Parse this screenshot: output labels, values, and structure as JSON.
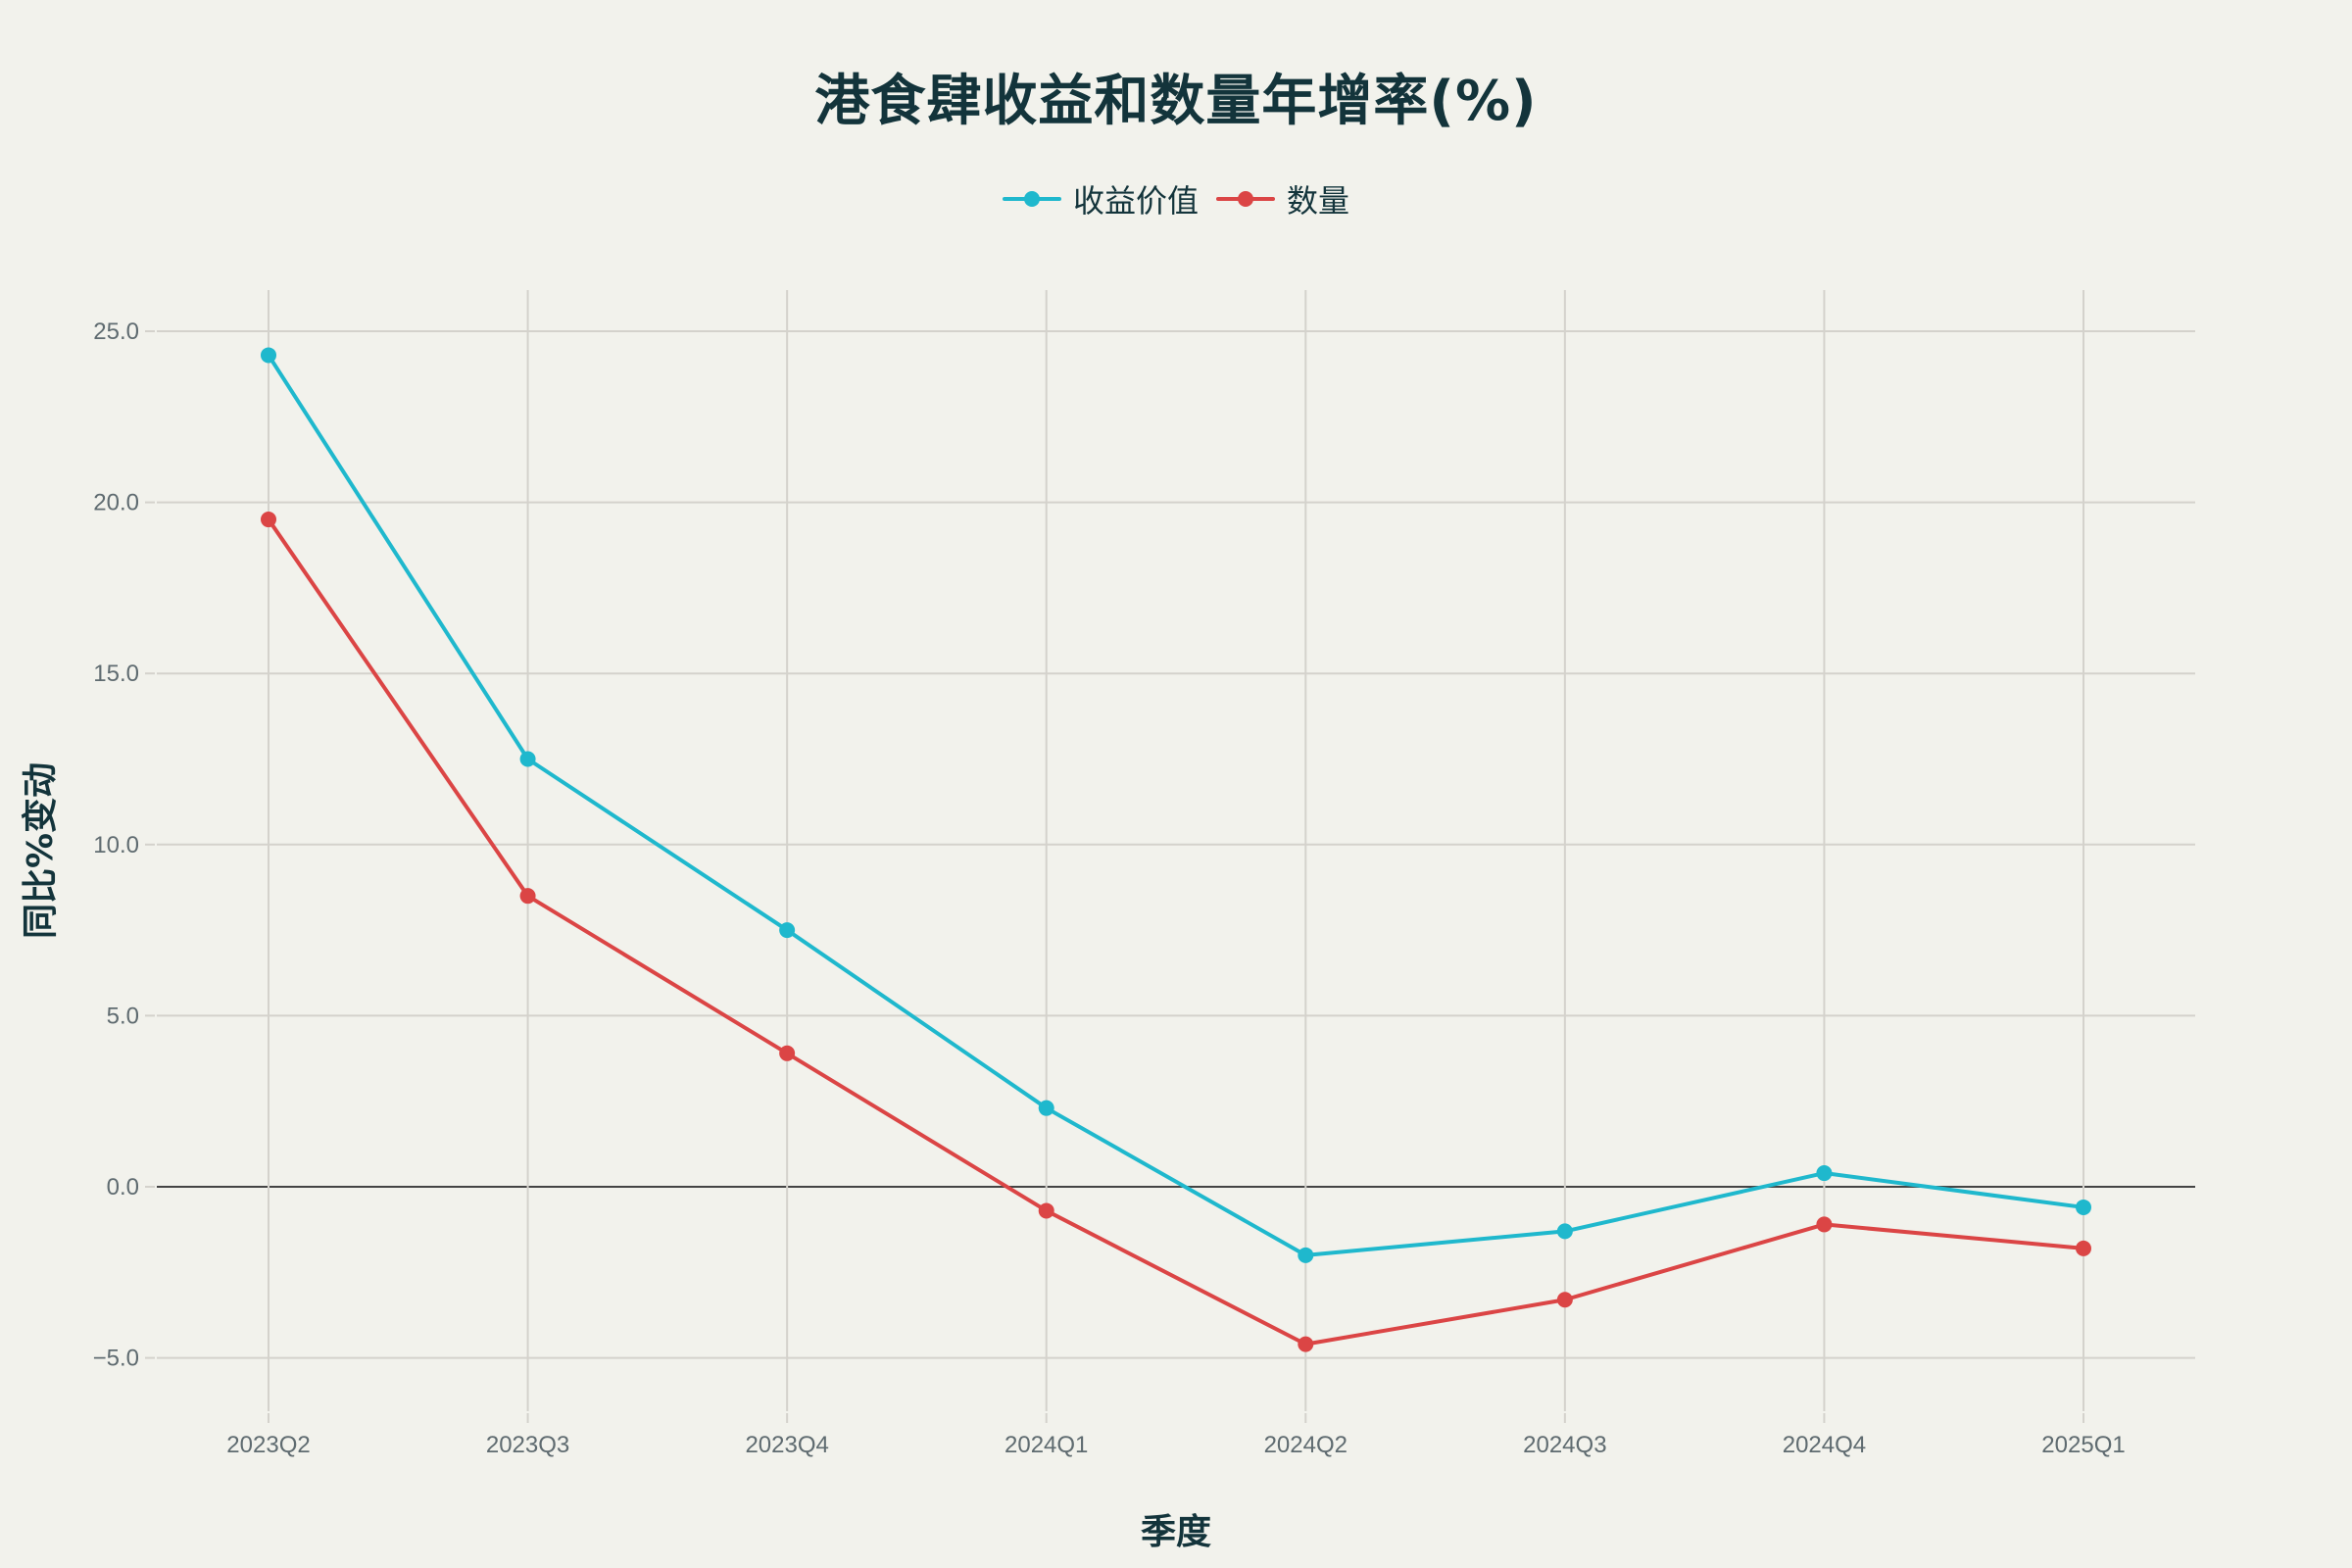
{
  "chart_data": {
    "type": "line",
    "title": "港食肆收益和数量年增率(%)",
    "xlabel": "季度",
    "ylabel": "同比%变动",
    "categories": [
      "2023Q2",
      "2023Q3",
      "2023Q4",
      "2024Q1",
      "2024Q2",
      "2024Q3",
      "2024Q4",
      "2025Q1"
    ],
    "series": [
      {
        "name": "收益价值",
        "color": "#1fb8cd",
        "values": [
          24.3,
          12.5,
          7.5,
          2.3,
          -2.0,
          -1.3,
          0.4,
          -0.6
        ]
      },
      {
        "name": "数量",
        "color": "#db4545",
        "values": [
          19.5,
          8.5,
          3.9,
          -0.7,
          -4.6,
          -3.3,
          -1.1,
          -1.8
        ]
      }
    ],
    "yticks": [
      -5.0,
      0.0,
      5.0,
      10.0,
      15.0,
      20.0,
      25.0
    ],
    "ytick_labels": [
      "−5.0",
      "0.0",
      "5.0",
      "10.0",
      "15.0",
      "20.0",
      "25.0"
    ],
    "ylim": [
      -6.6,
      26.2
    ],
    "grid": true,
    "legend_position": "top-center",
    "zero_line": true
  },
  "colors": {
    "background": "#f2f2ec",
    "text": "#13343b",
    "tick_text": "#5f6b70",
    "grid": "#d4d2cc",
    "zero_line": "#444444"
  }
}
